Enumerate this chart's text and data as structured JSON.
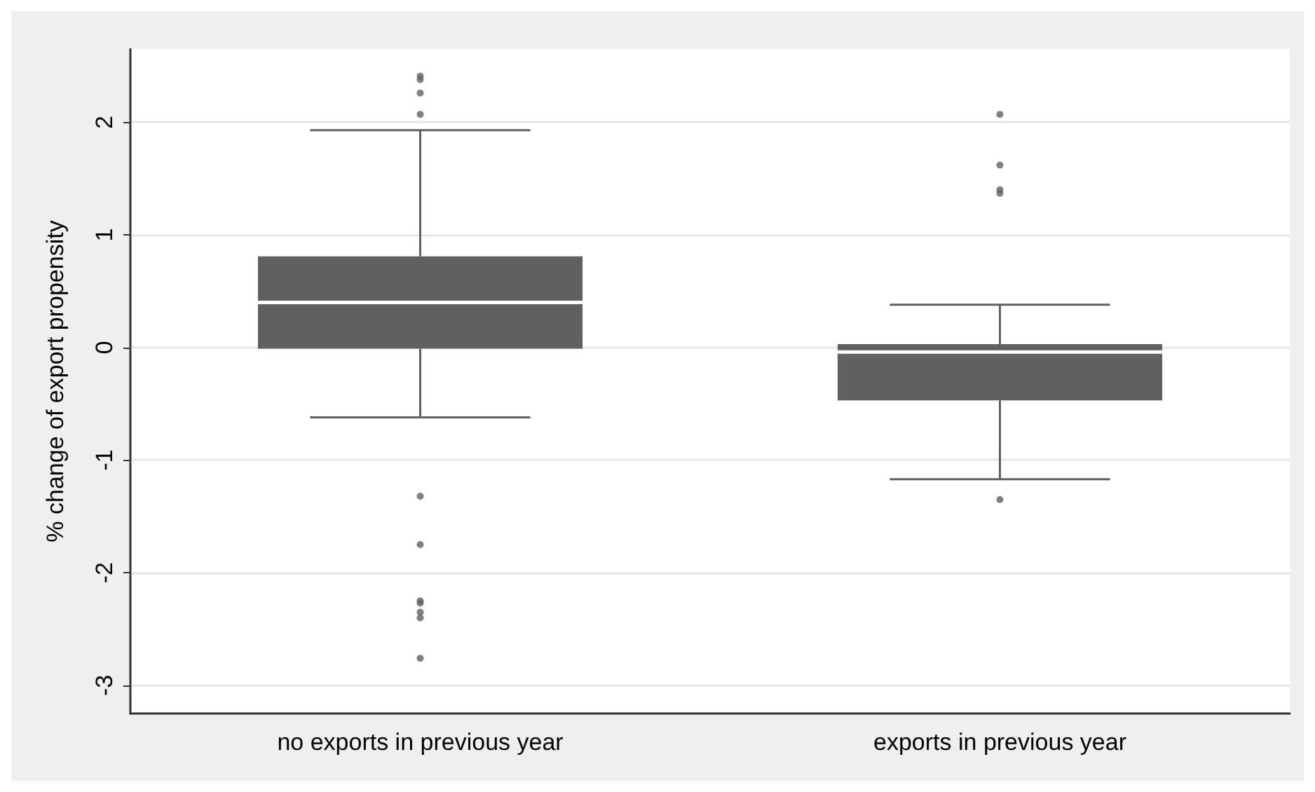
{
  "chart_data": {
    "type": "box",
    "ylabel": "% change of export propensity",
    "categories": [
      "no exports in previous year",
      "exports in previous year"
    ],
    "color": "#606060",
    "boxes": [
      {
        "low": -0.62,
        "q1": -0.01,
        "median": 0.4,
        "q3": 0.81,
        "high": 1.93,
        "outliers": [
          2.41,
          2.38,
          2.26,
          2.07,
          -1.32,
          -1.75,
          -2.25,
          -2.27,
          -2.35,
          -2.4,
          -2.76
        ]
      },
      {
        "low": -1.17,
        "q1": -0.47,
        "median": -0.04,
        "q3": 0.03,
        "high": 0.38,
        "outliers": [
          2.07,
          1.62,
          1.4,
          1.37,
          -1.35
        ]
      }
    ],
    "ylim": [
      -3.25,
      2.65
    ],
    "yticks": [
      -3,
      -2,
      -1,
      0,
      1,
      2
    ],
    "grid": "y"
  }
}
